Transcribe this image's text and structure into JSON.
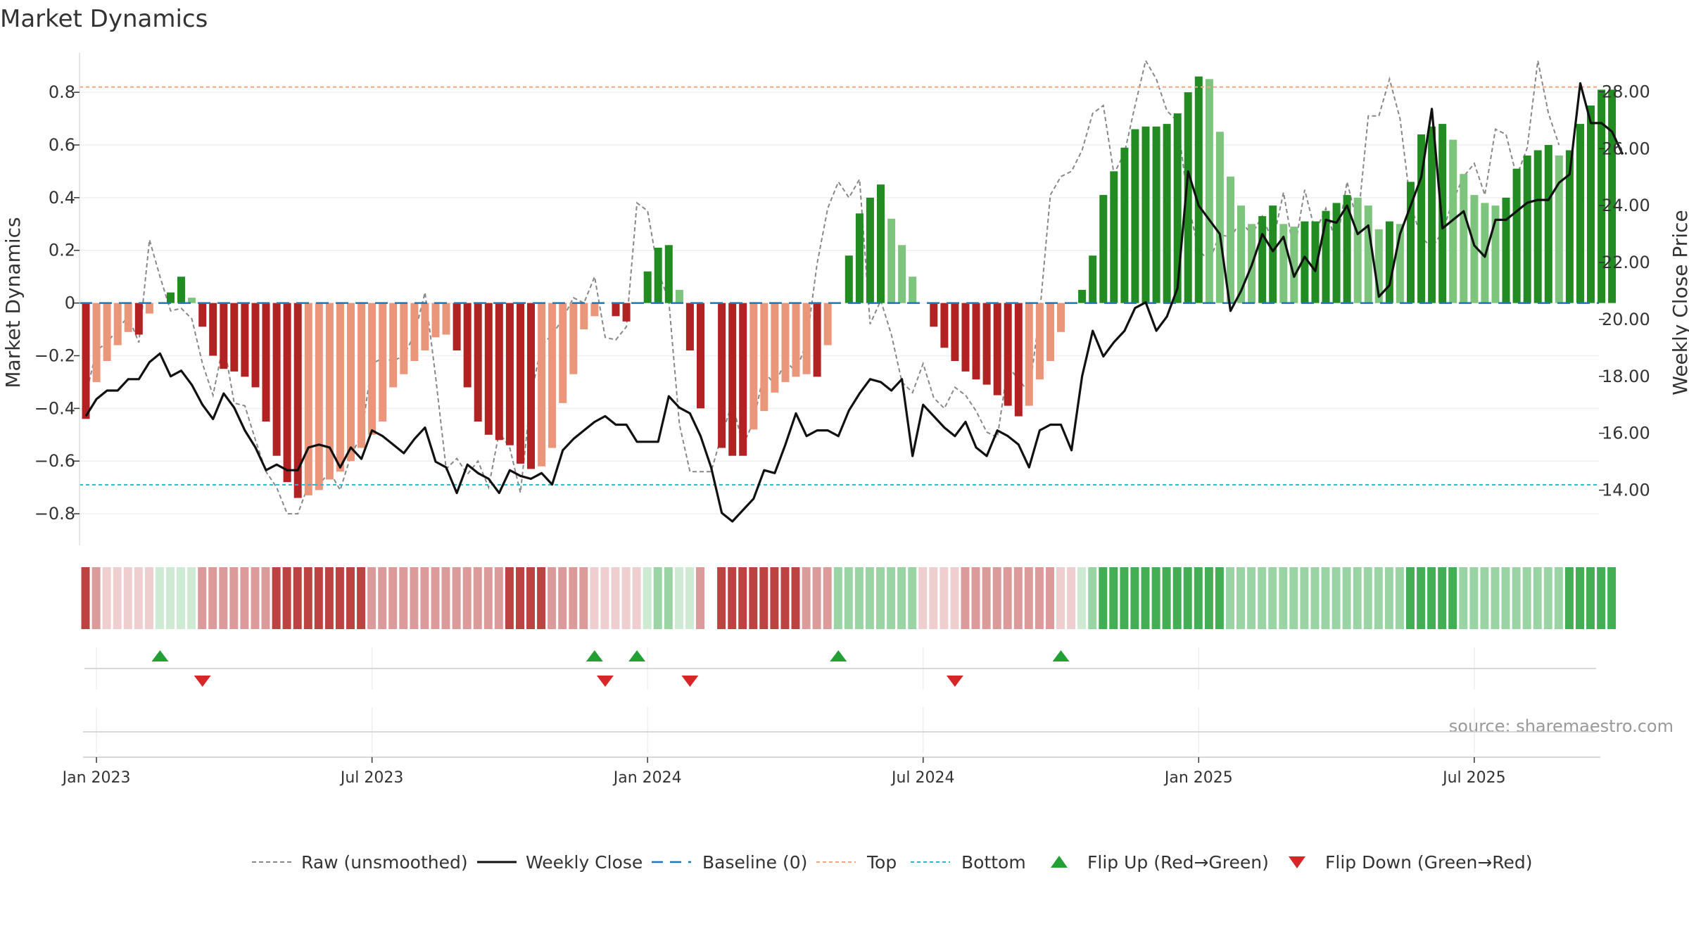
{
  "chart_data": {
    "type": "bar",
    "title": "Market Dynamics",
    "source": "source: sharemaestro.com",
    "x_ticks": [
      {
        "label": "Jan 2023",
        "week": 1
      },
      {
        "label": "Jul 2023",
        "week": 27
      },
      {
        "label": "Jan 2024",
        "week": 53
      },
      {
        "label": "Jul 2024",
        "week": 79
      },
      {
        "label": "Jan 2025",
        "week": 105
      },
      {
        "label": "Jul 2025",
        "week": 131
      }
    ],
    "y_left": {
      "label": "Market Dynamics",
      "range": [
        -0.92,
        0.95
      ],
      "ticks": [
        0.8,
        0.6,
        0.4,
        0.2,
        0,
        -0.2,
        -0.4,
        -0.6,
        -0.8
      ],
      "tick_labels": [
        "0.8",
        "0.6",
        "0.4",
        "0.2",
        "0",
        "−0.2",
        "−0.4",
        "−0.6",
        "−0.8"
      ]
    },
    "y_right": {
      "label": "Weekly Close Price",
      "range": [
        12.06,
        29.37
      ],
      "ticks": [
        28,
        26,
        24,
        22,
        20,
        18,
        16,
        14
      ],
      "tick_labels": [
        "28.00",
        "26.00",
        "24.00",
        "22.00",
        "20.00",
        "18.00",
        "16.00",
        "14.00"
      ]
    },
    "top_line": 0.82,
    "bottom_line": -0.69,
    "colors": {
      "strong_red": "#b22222",
      "light_red": "#e9967a",
      "strong_green": "#228b22",
      "light_green": "#7dc47d",
      "raw": "#888888",
      "close": "#111111",
      "baseline": "#1f77b4",
      "top": "#f4a582",
      "bottom": "#2bb8c8",
      "flip_up": "#22a036",
      "flip_down": "#d62728"
    },
    "series": [
      {
        "name": "Market Dynamics",
        "values": [
          -0.44,
          -0.3,
          -0.22,
          -0.16,
          -0.11,
          -0.12,
          -0.04,
          0,
          0.04,
          0.1,
          0.02,
          -0.09,
          -0.2,
          -0.25,
          -0.26,
          -0.28,
          -0.32,
          -0.45,
          -0.58,
          -0.68,
          -0.74,
          -0.73,
          -0.71,
          -0.67,
          -0.64,
          -0.6,
          -0.55,
          -0.5,
          -0.45,
          -0.32,
          -0.27,
          -0.22,
          -0.18,
          -0.13,
          -0.12,
          -0.18,
          -0.32,
          -0.45,
          -0.5,
          -0.52,
          -0.54,
          -0.61,
          -0.63,
          -0.62,
          -0.55,
          -0.38,
          -0.27,
          -0.1,
          -0.05,
          0,
          -0.05,
          -0.07,
          0,
          0.12,
          0.21,
          0.22,
          0.05,
          -0.18,
          -0.4,
          0,
          -0.55,
          -0.58,
          -0.58,
          -0.48,
          -0.41,
          -0.34,
          -0.3,
          -0.28,
          -0.27,
          -0.28,
          -0.16,
          0,
          0.18,
          0.34,
          0.4,
          0.45,
          0.32,
          0.22,
          0.1,
          0,
          -0.09,
          -0.17,
          -0.22,
          -0.26,
          -0.29,
          -0.31,
          -0.35,
          -0.39,
          -0.43,
          -0.39,
          -0.29,
          -0.22,
          -0.11,
          0,
          0.05,
          0.18,
          0.41,
          0.5,
          0.59,
          0.66,
          0.67,
          0.67,
          0.68,
          0.72,
          0.8,
          0.86,
          0.85,
          0.65,
          0.48,
          0.37,
          0.3,
          0.33,
          0.37,
          0.3,
          0.29,
          0.31,
          0.31,
          0.35,
          0.38,
          0.41,
          0.4,
          0.37,
          0.28,
          0.31,
          0.3,
          0.46,
          0.64,
          0.67,
          0.68,
          0.62,
          0.49,
          0.41,
          0.38,
          0.37,
          0.4,
          0.51,
          0.56,
          0.58,
          0.6,
          0.56,
          0.58,
          0.68,
          0.75,
          0.81,
          0.81
        ]
      },
      {
        "name": "Raw (unsmoothed)",
        "values": [
          -0.35,
          -0.18,
          -0.15,
          -0.1,
          -0.05,
          -0.15,
          0.24,
          0.1,
          -0.03,
          -0.02,
          -0.06,
          -0.23,
          -0.35,
          -0.15,
          -0.38,
          -0.39,
          -0.52,
          -0.64,
          -0.7,
          -0.8,
          -0.8,
          -0.69,
          -0.69,
          -0.64,
          -0.71,
          -0.58,
          -0.5,
          -0.23,
          -0.21,
          -0.22,
          -0.2,
          -0.12,
          0.04,
          -0.28,
          -0.63,
          -0.59,
          -0.65,
          -0.6,
          -0.7,
          -0.49,
          -0.55,
          -0.72,
          -0.35,
          -0.16,
          -0.12,
          -0.06,
          0.02,
          0,
          0.1,
          -0.13,
          -0.14,
          -0.09,
          0.38,
          0.35,
          0.12,
          0.01,
          -0.46,
          -0.64,
          -0.64,
          -0.64,
          -0.5,
          -0.38,
          -0.54,
          -0.45,
          -0.26,
          -0.31,
          -0.22,
          -0.26,
          -0.15,
          0.15,
          0.36,
          0.46,
          0.4,
          0.47,
          -0.08,
          0.01,
          -0.12,
          -0.3,
          -0.34,
          -0.23,
          -0.36,
          -0.4,
          -0.32,
          -0.35,
          -0.41,
          -0.49,
          -0.51,
          -0.24,
          -0.29,
          -0.34,
          -0.04,
          0.41,
          0.48,
          0.5,
          0.58,
          0.72,
          0.75,
          0.49,
          0.57,
          0.75,
          0.92,
          0.85,
          0.73,
          0.69,
          0.38,
          0.2,
          0.16,
          0.26,
          0.25,
          0.31,
          0.26,
          0.33,
          0.23,
          0.42,
          0.19,
          0.43,
          0.27,
          0.36,
          0.22,
          0.46,
          0.3,
          0.71,
          0.71,
          0.85,
          0.7,
          0.37,
          0.25,
          0.21,
          0.27,
          0.39,
          0.48,
          0.53,
          0.41,
          0.66,
          0.64,
          0.48,
          0.59,
          0.92,
          0.72,
          0.6
        ]
      },
      {
        "name": "Weekly Close",
        "values": [
          16.6,
          17.2,
          17.5,
          17.5,
          17.9,
          17.9,
          18.5,
          18.8,
          18.0,
          18.2,
          17.7,
          17.0,
          16.5,
          17.4,
          16.9,
          16.1,
          15.5,
          14.7,
          14.9,
          14.7,
          14.7,
          15.5,
          15.6,
          15.5,
          14.8,
          15.5,
          15.1,
          16.1,
          15.9,
          15.6,
          15.3,
          15.8,
          16.2,
          15.0,
          14.8,
          13.9,
          14.9,
          14.6,
          14.4,
          13.9,
          14.7,
          14.5,
          14.4,
          14.6,
          14.2,
          15.4,
          15.8,
          16.1,
          16.4,
          16.6,
          16.3,
          16.3,
          15.7,
          15.7,
          15.7,
          17.3,
          16.9,
          16.7,
          15.9,
          14.8,
          13.2,
          12.9,
          13.3,
          13.7,
          14.7,
          14.6,
          15.6,
          16.7,
          15.9,
          16.1,
          16.1,
          15.9,
          16.8,
          17.4,
          17.9,
          17.8,
          17.5,
          17.9,
          15.2,
          17.0,
          16.6,
          16.2,
          15.9,
          16.4,
          15.5,
          15.2,
          16.1,
          15.9,
          15.6,
          14.8,
          16.1,
          16.3,
          16.3,
          15.4,
          18.0,
          19.6,
          18.7,
          19.2,
          19.6,
          20.4,
          20.6,
          19.6,
          20.1,
          21.1,
          25.2,
          24.0,
          23.5,
          23.0,
          20.3,
          21.0,
          21.9,
          23.0,
          22.4,
          22.9,
          21.5,
          22.2,
          21.7,
          23.5,
          23.4,
          24.0,
          23.0,
          23.3,
          20.8,
          21.2,
          23.0,
          24.0,
          25.0,
          27.4,
          23.2,
          23.5,
          23.8,
          22.6,
          22.2,
          23.5,
          23.5,
          23.8,
          24.1,
          24.2,
          24.2,
          24.8,
          25.1,
          28.3,
          26.9,
          26.9,
          26.6,
          25.8
        ]
      }
    ],
    "band": [
      -3,
      -2,
      -1,
      -1,
      -1,
      -1,
      -1,
      1,
      1,
      1,
      1,
      -2,
      -2,
      -2,
      -2,
      -2,
      -2,
      -2,
      -3,
      -3,
      -3,
      -3,
      -3,
      -3,
      -3,
      -3,
      -3,
      -2,
      -2,
      -2,
      -2,
      -2,
      -2,
      -2,
      -2,
      -2,
      -2,
      -2,
      -2,
      -2,
      -3,
      -3,
      -3,
      -3,
      -2,
      -2,
      -2,
      -2,
      -1,
      -1,
      -1,
      -1,
      -1,
      1,
      2,
      2,
      1,
      1,
      -2,
      0,
      -3,
      -3,
      -3,
      -3,
      -3,
      -3,
      -3,
      -3,
      -2,
      -2,
      -2,
      2,
      2,
      2,
      2,
      2,
      2,
      2,
      2,
      -1,
      -1,
      -1,
      -1,
      -2,
      -2,
      -2,
      -2,
      -2,
      -2,
      -2,
      -2,
      -2,
      -1,
      -1,
      1,
      2,
      3,
      3,
      3,
      3,
      3,
      3,
      3,
      3,
      3,
      3,
      3,
      3,
      2,
      2,
      2,
      2,
      2,
      2,
      2,
      2,
      2,
      2,
      2,
      2,
      2,
      2,
      2,
      2,
      2,
      3,
      3,
      3,
      3,
      3,
      2,
      2,
      2,
      2,
      2,
      2,
      2,
      2,
      2,
      2,
      3,
      3,
      3,
      3,
      3
    ],
    "flip_up_weeks": [
      7,
      48,
      52,
      71,
      92
    ],
    "flip_down_weeks": [
      11,
      49,
      57,
      82
    ],
    "legend": [
      {
        "key": "raw",
        "label": "Raw (unsmoothed)"
      },
      {
        "key": "close",
        "label": "Weekly Close"
      },
      {
        "key": "baseline",
        "label": "Baseline (0)"
      },
      {
        "key": "top",
        "label": "Top"
      },
      {
        "key": "bottom",
        "label": "Bottom"
      },
      {
        "key": "flip_up",
        "label": "Flip Up (Red→Green)"
      },
      {
        "key": "flip_down",
        "label": "Flip Down (Green→Red)"
      }
    ]
  }
}
